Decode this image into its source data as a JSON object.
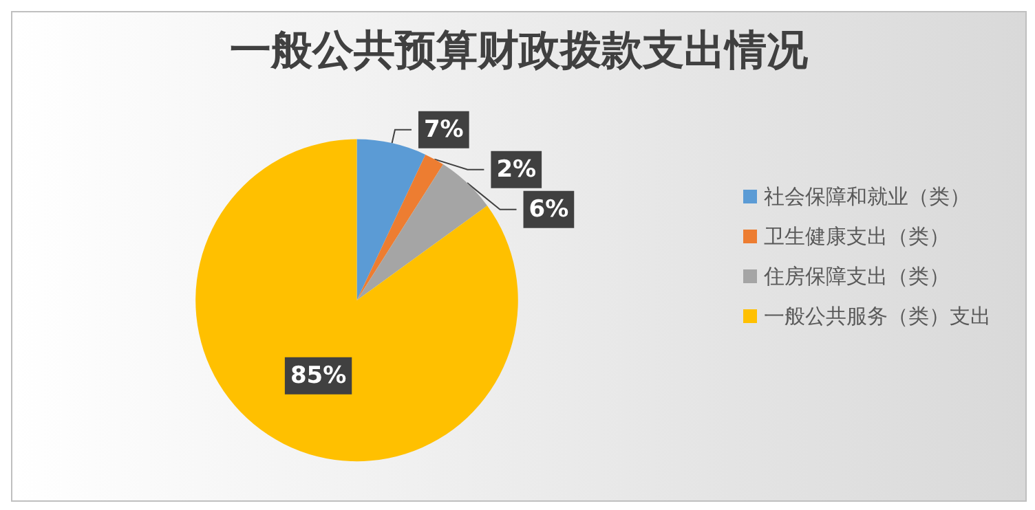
{
  "chart_data": {
    "type": "pie",
    "title": "一般公共预算财政拨款支出情况",
    "categories": [
      "社会保障和就业（类）",
      "卫生健康支出（类）",
      "住房保障支出（类）",
      "一般公共服务（类）支出"
    ],
    "values": [
      7,
      2,
      6,
      85
    ],
    "colors": [
      "#5b9bd5",
      "#ed7d31",
      "#a5a5a5",
      "#ffc000"
    ],
    "value_labels": [
      "7%",
      "2%",
      "6%",
      "85%"
    ],
    "legend": "right"
  }
}
